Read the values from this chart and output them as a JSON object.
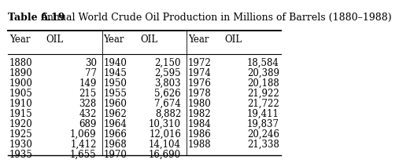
{
  "title_bold": "Table 6.19",
  "title_text": "Annual World Crude Oil Production in Millions of Barrels (1880–1988)",
  "col1_years": [
    "1880",
    "1890",
    "1900",
    "1905",
    "1910",
    "1915",
    "1920",
    "1925",
    "1930",
    "1935"
  ],
  "col1_oil": [
    "30",
    "77",
    "149",
    "215",
    "328",
    "432",
    "689",
    "1,069",
    "1,412",
    "1,655"
  ],
  "col2_years": [
    "1940",
    "1945",
    "1950",
    "1955",
    "1960",
    "1962",
    "1964",
    "1966",
    "1968",
    "1970"
  ],
  "col2_oil": [
    "2,150",
    "2,595",
    "3,803",
    "5,626",
    "7,674",
    "8,882",
    "10,310",
    "12,016",
    "14,104",
    "16,690"
  ],
  "col3_years": [
    "1972",
    "1974",
    "1976",
    "1978",
    "1980",
    "1982",
    "1984",
    "1986",
    "1988",
    ""
  ],
  "col3_oil": [
    "18,584",
    "20,389",
    "20,188",
    "21,922",
    "21,722",
    "19,411",
    "19,837",
    "20,246",
    "21,338",
    ""
  ],
  "header_year": "Year",
  "header_oil": "OIL",
  "bg_color": "#ffffff",
  "text_color": "#000000",
  "fontsize": 8.5,
  "title_fontsize": 9.0
}
